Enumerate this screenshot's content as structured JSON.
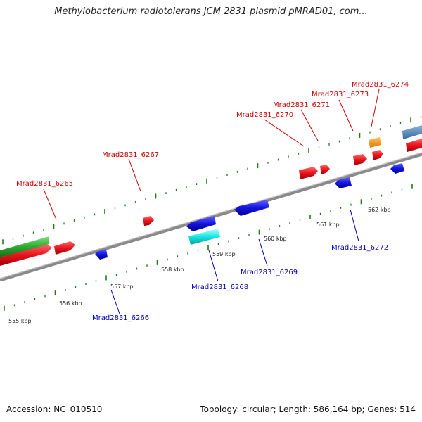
{
  "title": "Methylobacterium radiotolerans JCM 2831 plasmid pMRAD01, com...",
  "footer": {
    "accession": "Accession: NC_010510",
    "summary": "Topology: circular; Length: 586,164 bp; Genes: 514"
  },
  "colors": {
    "forward_gene": "#e8141c",
    "reverse_gene": "#1010d8",
    "forward_label": "#cc0000",
    "reverse_label": "#0000bb",
    "tick": "#1f7a1f",
    "backbone": "#8a8a8a"
  },
  "scale_labels": [
    "555 kbp",
    "556 kbp",
    "557 kbp",
    "558 kbp",
    "559 kbp",
    "560 kbp",
    "561 kbp",
    "562 kbp"
  ],
  "forward_genes": [
    "Mrad2831_6265",
    "Mrad2831_6267",
    "Mrad2831_6270",
    "Mrad2831_6271",
    "Mrad2831_6273",
    "Mrad2831_6274"
  ],
  "reverse_genes": [
    "Mrad2831_6266",
    "Mrad2831_6268",
    "Mrad2831_6269",
    "Mrad2831_6272"
  ]
}
